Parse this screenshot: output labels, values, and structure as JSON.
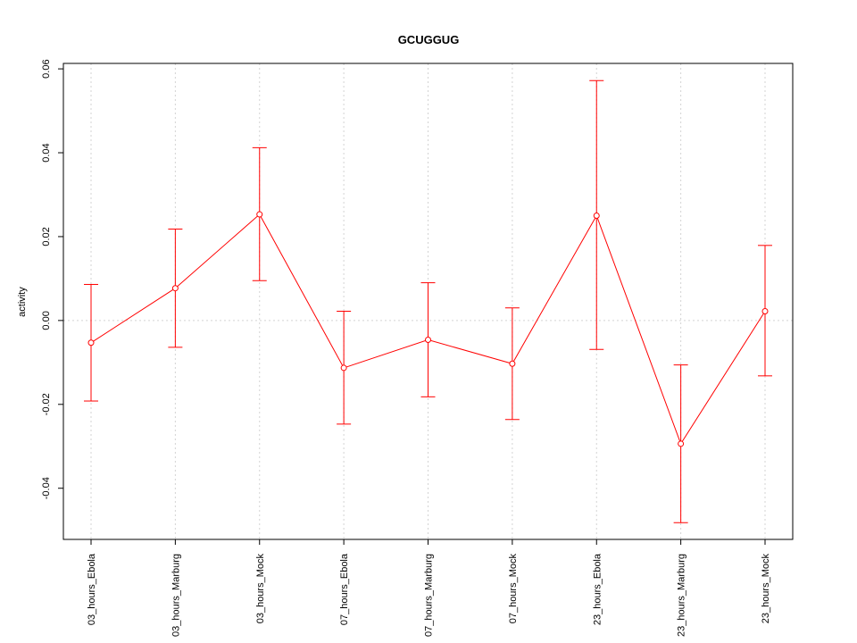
{
  "chart_data": {
    "type": "line",
    "title": "GCUGGUG",
    "xlabel": "",
    "ylabel": "activity",
    "categories": [
      "03_hours_Ebola",
      "03_hours_Marburg",
      "03_hours_Mock",
      "07_hours_Ebola",
      "07_hours_Marburg",
      "07_hours_Mock",
      "23_hours_Ebola",
      "23_hours_Marburg",
      "23_hours_Mock"
    ],
    "values": [
      -0.0053,
      0.0077,
      0.0253,
      -0.0113,
      -0.0046,
      -0.0103,
      0.025,
      -0.0294,
      0.0022
    ],
    "error_upper": [
      0.0086,
      0.0218,
      0.0412,
      0.0022,
      0.009,
      0.003,
      0.0572,
      -0.0106,
      0.0179
    ],
    "error_lower": [
      -0.0192,
      -0.0064,
      0.0095,
      -0.0247,
      -0.0182,
      -0.0236,
      -0.0069,
      -0.0482,
      -0.0132
    ],
    "yticks": [
      -0.04,
      -0.02,
      0.0,
      0.02,
      0.04,
      0.06
    ],
    "ytick_labels": [
      "-0.04",
      "-0.02",
      "0.00",
      "0.02",
      "0.04",
      "0.06"
    ],
    "ylim": [
      -0.0522,
      0.0613
    ],
    "grid": true,
    "series_color": "#ff0000",
    "grid_color": "#d3d3d3"
  }
}
